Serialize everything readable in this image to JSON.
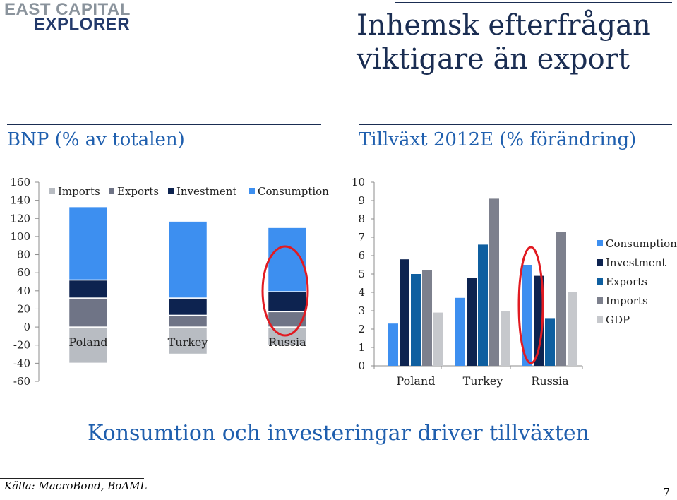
{
  "header": {
    "logo_line1": "EAST CAPITAL",
    "logo_line2": "EXPLORER",
    "title": "Inhemsk efterfrågan viktigare än export"
  },
  "left_panel": {
    "subtitle": "BNP (% av totalen)"
  },
  "right_panel": {
    "subtitle": "Tillväxt 2012E (% förändring)"
  },
  "footer": {
    "headline": "Konsumtion och investeringar driver tillväxten",
    "source": "Källa: MacroBond, BoAML",
    "page_number": "7"
  },
  "chart_data": [
    {
      "type": "bar",
      "stacked": true,
      "categories": [
        "Poland",
        "Turkey",
        "Russia"
      ],
      "series": [
        {
          "name": "Imports",
          "values": [
            -40,
            -30,
            -20
          ],
          "color": "#b8bcc2"
        },
        {
          "name": "Exports",
          "values": [
            32,
            13,
            17
          ],
          "color": "#6f7486"
        },
        {
          "name": "Investment",
          "values": [
            20,
            19,
            22
          ],
          "color": "#0d2350"
        },
        {
          "name": "Consumption",
          "values": [
            81,
            85,
            71
          ],
          "color": "#3d8ff0"
        }
      ],
      "ylim": [
        -60,
        160
      ],
      "yticks": [
        160,
        140,
        120,
        100,
        80,
        60,
        40,
        20,
        0,
        -20,
        -40,
        -60
      ],
      "grid": false,
      "legend": "top",
      "annotation": "red ellipse around Russia"
    },
    {
      "type": "bar",
      "categories": [
        "Poland",
        "Turkey",
        "Russia"
      ],
      "series": [
        {
          "name": "Consumption",
          "values": [
            2.3,
            3.7,
            5.5
          ],
          "color": "#3d8ff0"
        },
        {
          "name": "Investment",
          "values": [
            5.8,
            4.8,
            4.9
          ],
          "color": "#0d2350"
        },
        {
          "name": "Exports",
          "values": [
            5.0,
            6.6,
            2.6
          ],
          "color": "#0f5fa0"
        },
        {
          "name": "Imports",
          "values": [
            5.2,
            9.1,
            7.3
          ],
          "color": "#7d808d"
        },
        {
          "name": "GDP",
          "values": [
            2.9,
            3.0,
            4.0
          ],
          "color": "#c6c8cc"
        }
      ],
      "ylim": [
        0,
        10
      ],
      "yticks": [
        10,
        9,
        8,
        7,
        6,
        5,
        4,
        3,
        2,
        1,
        0
      ],
      "grid": false,
      "legend": "right",
      "annotation": "red ellipse around Russia"
    }
  ]
}
